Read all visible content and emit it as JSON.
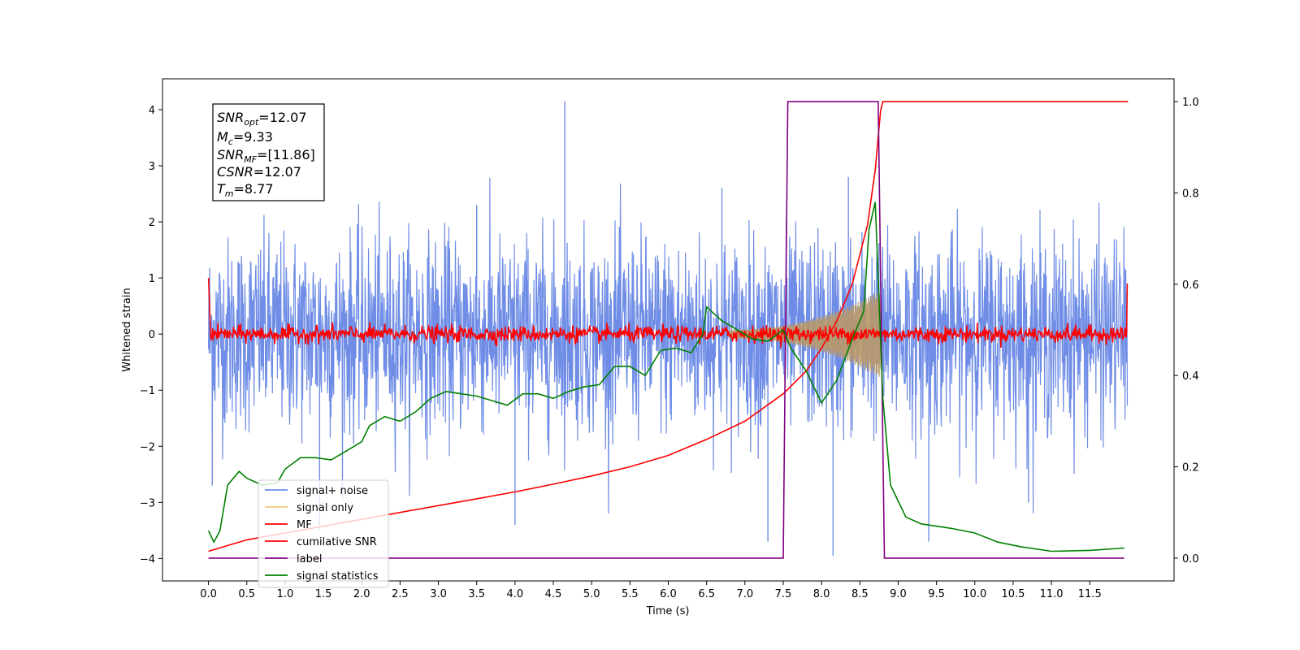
{
  "chart_data": {
    "type": "line",
    "xlabel": "Time (s)",
    "ylabel": "Whitened strain",
    "xlim": [
      -0.6,
      12.6
    ],
    "ylim": [
      -4.4,
      4.55
    ],
    "ylim_right": [
      -0.05,
      1.05
    ],
    "x_ticks": [
      0.0,
      0.5,
      1.0,
      1.5,
      2.0,
      2.5,
      3.0,
      3.5,
      4.0,
      4.5,
      5.0,
      5.5,
      6.0,
      6.5,
      7.0,
      7.5,
      8.0,
      8.5,
      9.0,
      9.5,
      10.0,
      10.5,
      11.0,
      11.5
    ],
    "x_tick_labels": [
      "0.0",
      "0.5",
      "1.0",
      "1.5",
      "2.0",
      "2.5",
      "3.0",
      "3.5",
      "4.0",
      "4.5",
      "5.0",
      "5.5",
      "6.0",
      "6.5",
      "7.0",
      "7.5",
      "8.0",
      "8.5",
      "9.0",
      "9.5",
      "10.0",
      "10.5",
      "11.0",
      "11.5"
    ],
    "y_ticks": [
      -4,
      -3,
      -2,
      -1,
      0,
      1,
      2,
      3,
      4
    ],
    "y_tick_labels": [
      "−4",
      "−3",
      "−2",
      "−1",
      "0",
      "1",
      "2",
      "3",
      "4"
    ],
    "y_right_ticks": [
      0.0,
      0.2,
      0.4,
      0.6,
      0.8,
      1.0
    ],
    "y_right_tick_labels": [
      "0.0",
      "0.2",
      "0.4",
      "0.6",
      "0.8",
      "1.0"
    ],
    "grid": false,
    "legend_position": "lower-left",
    "legend": [
      {
        "label": "signal+ noise",
        "color": "#6f8de6"
      },
      {
        "label": "signal only",
        "color": "#f5c97a"
      },
      {
        "label": "MF",
        "color": "#ff0000"
      },
      {
        "label": "cumilative SNR",
        "color": "#ff0000"
      },
      {
        "label": "label",
        "color": "#800080"
      },
      {
        "label": "signal statistics",
        "color": "#008000"
      }
    ],
    "info_box": {
      "snr_opt_label": "SNR",
      "snr_opt_sub": "opt",
      "snr_opt_value": "=12.07",
      "mc_label": "M",
      "mc_sub": "c",
      "mc_value": "=9.33",
      "snr_mf_label": "SNR",
      "snr_mf_sub": "MF",
      "snr_mf_value": "=[11.86]",
      "csnr_label": "CSNR",
      "csnr_value": "=12.07",
      "tm_label": "T",
      "tm_sub": "m",
      "tm_value": "=8.77"
    },
    "series": [
      {
        "name": "signal+ noise",
        "color": "#6f8de6",
        "axis": "left",
        "description_x_range": [
          0.0,
          11.99
        ],
        "envelope_y": [
          -2.2,
          2.2
        ],
        "spike_x": [
          0.05,
          1.45,
          3.5,
          4.0,
          4.65,
          6.7,
          7.3,
          8.15,
          8.35,
          9.4,
          10.7
        ],
        "spike_y": [
          -2.7,
          -3.5,
          2.3,
          -3.4,
          4.15,
          2.6,
          -3.7,
          -3.95,
          2.8,
          -3.7,
          -3.0
        ]
      },
      {
        "name": "signal only",
        "color": "#f5c97a",
        "axis": "left",
        "chirp_start": 6.8,
        "chirp_end": 8.77,
        "max_amplitude": 0.7
      },
      {
        "name": "MF",
        "color": "#ff0000",
        "axis": "left",
        "description": "noise around zero",
        "amplitude": 0.12,
        "edge_values": [
          1.0,
          0.9
        ]
      },
      {
        "name": "cumilative SNR",
        "color": "#ff0000",
        "axis": "right",
        "x": [
          0.0,
          0.5,
          1.0,
          1.5,
          2.0,
          2.5,
          3.0,
          3.5,
          4.0,
          4.5,
          5.0,
          5.5,
          6.0,
          6.5,
          7.0,
          7.5,
          7.8,
          8.0,
          8.2,
          8.4,
          8.6,
          8.7,
          8.77,
          8.8,
          12.0
        ],
        "y": [
          0.015,
          0.04,
          0.055,
          0.07,
          0.085,
          0.1,
          0.115,
          0.13,
          0.145,
          0.162,
          0.18,
          0.2,
          0.225,
          0.26,
          0.3,
          0.36,
          0.41,
          0.46,
          0.52,
          0.6,
          0.73,
          0.85,
          0.98,
          1.0,
          1.0
        ]
      },
      {
        "name": "label",
        "color": "#800080",
        "axis": "right",
        "x": [
          0.0,
          7.5,
          7.56,
          8.74,
          8.82,
          11.95
        ],
        "y": [
          0.0,
          0.0,
          1.0,
          1.0,
          0.0,
          0.0
        ]
      },
      {
        "name": "signal statistics",
        "color": "#008000",
        "axis": "right",
        "x": [
          0.0,
          0.07,
          0.15,
          0.25,
          0.4,
          0.5,
          0.7,
          0.9,
          1.0,
          1.2,
          1.4,
          1.6,
          1.8,
          2.0,
          2.1,
          2.3,
          2.5,
          2.7,
          2.9,
          3.1,
          3.3,
          3.5,
          3.7,
          3.9,
          4.1,
          4.3,
          4.5,
          4.7,
          4.9,
          5.1,
          5.3,
          5.5,
          5.7,
          5.9,
          6.1,
          6.3,
          6.45,
          6.5,
          6.7,
          6.9,
          7.1,
          7.3,
          7.5,
          7.6,
          7.8,
          8.0,
          8.2,
          8.4,
          8.55,
          8.62,
          8.7,
          8.8,
          8.9,
          9.1,
          9.3,
          9.5,
          9.7,
          10.0,
          10.3,
          10.6,
          11.0,
          11.5,
          11.95
        ],
        "y": [
          0.06,
          0.035,
          0.06,
          0.16,
          0.19,
          0.175,
          0.16,
          0.165,
          0.195,
          0.22,
          0.22,
          0.215,
          0.235,
          0.255,
          0.29,
          0.31,
          0.3,
          0.32,
          0.35,
          0.365,
          0.36,
          0.355,
          0.345,
          0.335,
          0.36,
          0.36,
          0.35,
          0.365,
          0.375,
          0.38,
          0.42,
          0.42,
          0.4,
          0.455,
          0.46,
          0.45,
          0.49,
          0.55,
          0.52,
          0.5,
          0.48,
          0.475,
          0.5,
          0.46,
          0.41,
          0.34,
          0.39,
          0.48,
          0.54,
          0.72,
          0.78,
          0.35,
          0.16,
          0.09,
          0.075,
          0.07,
          0.065,
          0.055,
          0.035,
          0.025,
          0.015,
          0.017,
          0.022
        ]
      }
    ]
  }
}
